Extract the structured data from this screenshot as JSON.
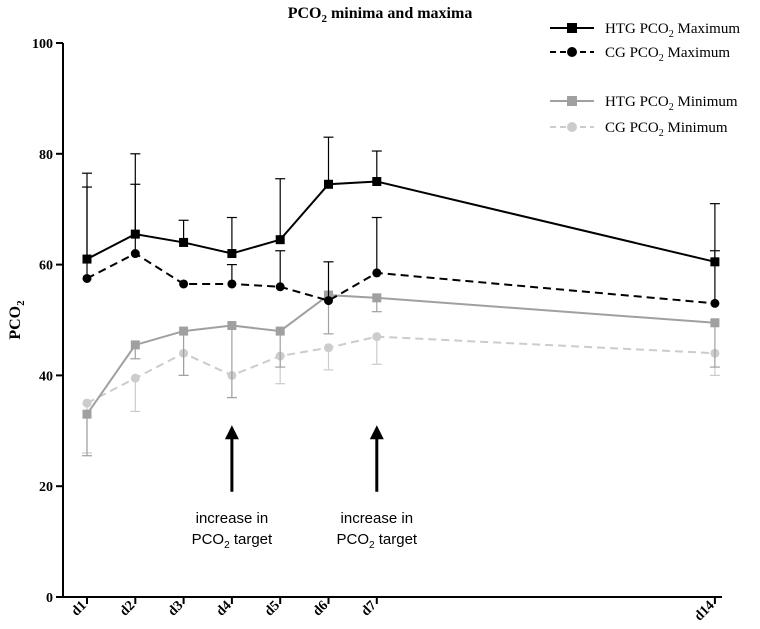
{
  "chart_data": {
    "type": "line",
    "title_main": "PCO",
    "title_sub": "2",
    "title_rest": " minima and maxima",
    "ylabel_main": "PCO",
    "ylabel_sub": "2",
    "ylim": [
      0,
      100
    ],
    "yticks": [
      "0",
      "20",
      "40",
      "60",
      "80",
      "100"
    ],
    "categories": [
      "d1",
      "d2",
      "d3",
      "d4",
      "d5",
      "d6",
      "d7",
      "d14"
    ],
    "x": [
      1,
      2,
      3,
      4,
      5,
      6,
      7,
      14
    ],
    "series": [
      {
        "name_prefix": "HTG PCO",
        "name_sub": "2",
        "name_suffix": " Maximum",
        "color": "#000000",
        "marker": "square",
        "dashed": false,
        "values": [
          61,
          65.5,
          64,
          62,
          64.5,
          74.5,
          75,
          60.5
        ],
        "sd_upper": [
          76.5,
          80,
          68,
          68.5,
          75.5,
          83,
          80.5,
          71
        ],
        "sd_lower": [
          null,
          null,
          null,
          null,
          null,
          null,
          null,
          null
        ]
      },
      {
        "name_prefix": "CG PCO",
        "name_sub": "2",
        "name_suffix": " Maximum",
        "color": "#000000",
        "marker": "circle",
        "dashed": true,
        "values": [
          57.5,
          62,
          56.5,
          56.5,
          56,
          53.5,
          58.5,
          53
        ],
        "sd_upper": [
          74,
          74.5,
          null,
          60,
          62.5,
          60.5,
          68.5,
          62.5
        ],
        "sd_lower": [
          null,
          null,
          null,
          null,
          null,
          null,
          null,
          null
        ]
      },
      {
        "name_prefix": "HTG PCO",
        "name_sub": "2",
        "name_suffix": " Minimum",
        "color": "#a0a0a0",
        "marker": "square",
        "dashed": false,
        "values": [
          33,
          45.5,
          48,
          49,
          48,
          54.5,
          54,
          49.5
        ],
        "sd_upper": [
          null,
          null,
          null,
          null,
          null,
          null,
          null,
          null
        ],
        "sd_lower": [
          25.5,
          43,
          40,
          36,
          41.5,
          47.5,
          51.5,
          41.5
        ]
      },
      {
        "name_prefix": "CG PCO",
        "name_sub": "2",
        "name_suffix": " Minimum",
        "color": "#cccccc",
        "marker": "circle",
        "dashed": true,
        "values": [
          35,
          39.5,
          44,
          40,
          43.5,
          45,
          47,
          44
        ],
        "sd_upper": [
          null,
          null,
          null,
          null,
          null,
          null,
          null,
          null
        ],
        "sd_lower": [
          26,
          33.5,
          40,
          36,
          38.5,
          41,
          42,
          40
        ]
      }
    ],
    "annotations": [
      {
        "line1": "increase in",
        "line2_main": "PCO",
        "line2_sub": "2",
        "line2_rest": " target",
        "x": 4,
        "arrow_top": 31,
        "arrow_bottom": 19
      },
      {
        "line1": "increase in",
        "line2_main": "PCO",
        "line2_sub": "2",
        "line2_rest": " target",
        "x": 7,
        "arrow_top": 31,
        "arrow_bottom": 19
      }
    ]
  }
}
